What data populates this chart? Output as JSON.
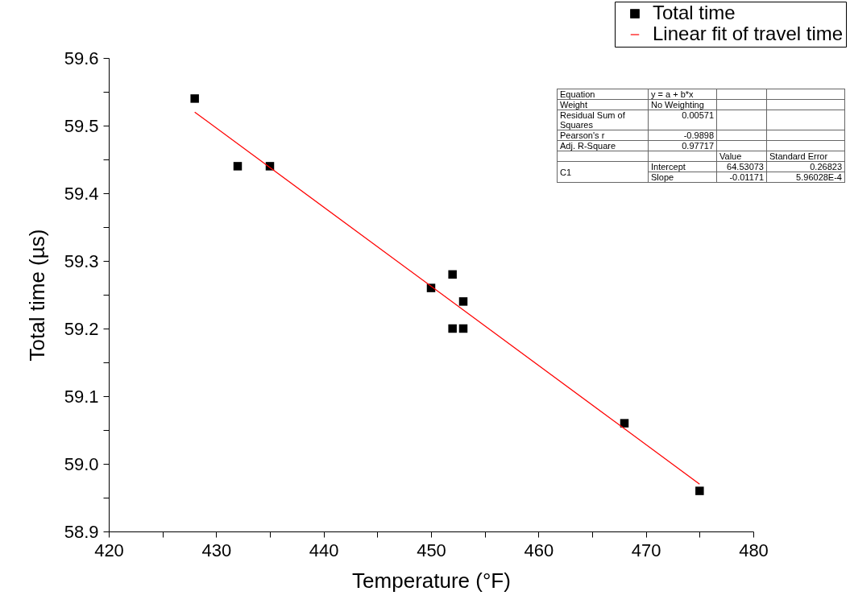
{
  "chart_data": {
    "type": "scatter",
    "xlabel": "Temperature (°F)",
    "ylabel": "Total time (µs)",
    "xlim": [
      420,
      480
    ],
    "ylim": [
      58.9,
      59.6
    ],
    "xticks": [
      420,
      {
        "value": 425,
        "label": null
      },
      430,
      {
        "value": 435,
        "label": null
      },
      440,
      {
        "value": 445,
        "label": null
      },
      450,
      {
        "value": 455,
        "label": null
      },
      460,
      {
        "value": 465,
        "label": null
      },
      470,
      {
        "value": 475,
        "label": null
      },
      480
    ],
    "yticks": [
      58.9,
      {
        "value": 58.95,
        "label": null
      },
      {
        "value": 59,
        "label": "59.0"
      },
      {
        "value": 59.05,
        "label": null
      },
      59.1,
      {
        "value": 59.15,
        "label": null
      },
      59.2,
      {
        "value": 59.25,
        "label": null
      },
      59.3,
      {
        "value": 59.35,
        "label": null
      },
      59.4,
      {
        "value": 59.45,
        "label": null
      },
      59.5,
      {
        "value": 59.55,
        "label": null
      },
      59.6
    ],
    "series": [
      {
        "name": "Total time",
        "color": "#000000",
        "marker": "square",
        "x": [
          428,
          432,
          435,
          450,
          452,
          452,
          453,
          453,
          468,
          475
        ],
        "values": [
          59.54,
          59.44,
          59.44,
          59.26,
          59.28,
          59.2,
          59.24,
          59.2,
          59.06,
          58.96
        ]
      },
      {
        "name": "Linear fit of travel time",
        "type": "line",
        "color": "#ff0000",
        "line_style": "solid",
        "x": [
          428,
          475
        ],
        "values": [
          59.52,
          58.97
        ]
      }
    ],
    "grid": false,
    "legend": "top right",
    "annotations": [
      "Equation",
      "y = a + b*x",
      "Weight",
      "No Weighting",
      "Residual Sum of Squares",
      "0.00571",
      "Pearson's r",
      "-0.9898",
      "Adj. R-Square",
      "0.97717",
      "Value",
      "Standard Error",
      "C1",
      "Intercept",
      "64.53073",
      "0.26823",
      "Slope",
      "-0.01171",
      "5.96028E-4"
    ]
  }
}
